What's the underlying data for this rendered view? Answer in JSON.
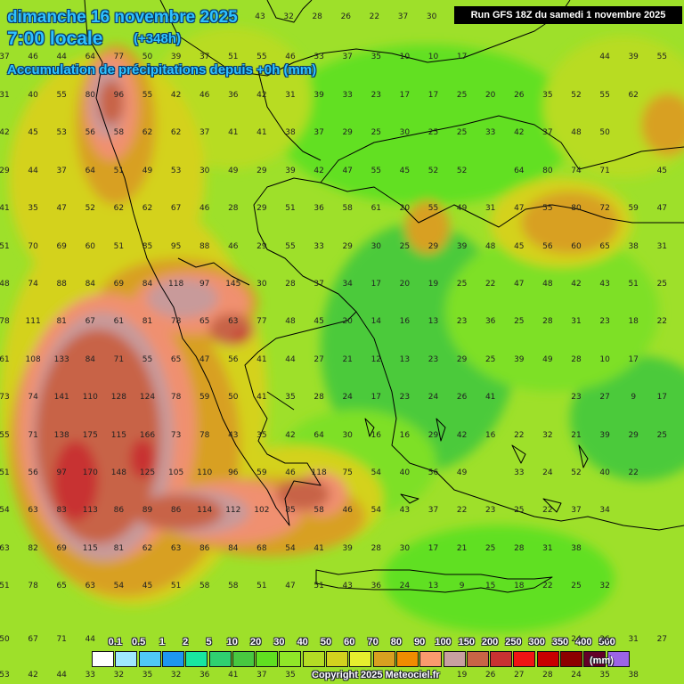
{
  "title": {
    "date_line": "dimanche 16 novembre 2025",
    "time_line": "7:00 locale",
    "lead_line": "(+348h)",
    "field_line": "Accumulation de précipitations depuis +0h (mm)"
  },
  "run_info": "Run GFS 18Z du samedi 1 novembre 2025",
  "copyright": "Copyright 2025 Meteociel.fr",
  "legend": {
    "unit": "(mm)",
    "labels": [
      "0.1",
      "0.5",
      "1",
      "2",
      "5",
      "10",
      "20",
      "30",
      "40",
      "50",
      "60",
      "70",
      "80",
      "90",
      "100",
      "150",
      "200",
      "250",
      "300",
      "350",
      "400",
      "500"
    ],
    "colors": [
      "#ffffff",
      "#a0e8ff",
      "#50c8f5",
      "#1e96f0",
      "#18e6a0",
      "#2fd070",
      "#48c840",
      "#60e020",
      "#90e628",
      "#b4dc24",
      "#d2d21e",
      "#e6ee2e",
      "#d8a020",
      "#f08c00",
      "#fa9a6e",
      "#c8a0a0",
      "#c86446",
      "#c83232",
      "#f01414",
      "#c80000",
      "#8c0000",
      "#640028",
      "#9c64e6"
    ]
  },
  "grid_values": [
    [
      43,
      32,
      28,
      26,
      22,
      37,
      30,
      null,
      null,
      null,
      null,
      null,
      null
    ],
    [
      37,
      46,
      44,
      64,
      77,
      50,
      39,
      37,
      51,
      55,
      46,
      33,
      37,
      35,
      10,
      10,
      17,
      null,
      null,
      null,
      null,
      44,
      39,
      55
    ],
    [
      31,
      40,
      55,
      80,
      96,
      55,
      42,
      46,
      36,
      42,
      31,
      39,
      33,
      23,
      17,
      17,
      25,
      20,
      26,
      35,
      52,
      55,
      62
    ],
    [
      42,
      45,
      53,
      56,
      58,
      62,
      62,
      37,
      41,
      41,
      38,
      37,
      29,
      25,
      30,
      25,
      25,
      33,
      42,
      37,
      48,
      50
    ],
    [
      29,
      44,
      37,
      64,
      51,
      49,
      53,
      30,
      49,
      29,
      39,
      42,
      47,
      55,
      45,
      52,
      52,
      null,
      64,
      80,
      74,
      71,
      null,
      45
    ],
    [
      41,
      35,
      47,
      52,
      62,
      62,
      67,
      46,
      28,
      29,
      51,
      36,
      58,
      61,
      20,
      55,
      49,
      31,
      47,
      55,
      80,
      72,
      59,
      47
    ],
    [
      51,
      70,
      69,
      60,
      51,
      85,
      95,
      88,
      46,
      29,
      55,
      33,
      29,
      30,
      25,
      29,
      39,
      48,
      45,
      56,
      60,
      65,
      38,
      31
    ],
    [
      48,
      74,
      88,
      84,
      69,
      84,
      118,
      97,
      145,
      30,
      28,
      37,
      34,
      17,
      20,
      19,
      25,
      22,
      47,
      48,
      42,
      43,
      51,
      25
    ],
    [
      78,
      111,
      81,
      67,
      61,
      81,
      78,
      65,
      63,
      77,
      48,
      45,
      20,
      14,
      16,
      13,
      23,
      36,
      25,
      28,
      31,
      23,
      18,
      22
    ],
    [
      61,
      108,
      133,
      84,
      71,
      55,
      65,
      47,
      56,
      41,
      44,
      27,
      21,
      12,
      13,
      23,
      29,
      25,
      39,
      49,
      28,
      10,
      17
    ],
    [
      73,
      74,
      141,
      110,
      128,
      124,
      78,
      59,
      50,
      41,
      35,
      28,
      24,
      17,
      23,
      24,
      26,
      41,
      null,
      null,
      23,
      27,
      9,
      17
    ],
    [
      55,
      71,
      138,
      175,
      115,
      166,
      73,
      78,
      43,
      35,
      42,
      64,
      30,
      16,
      16,
      29,
      42,
      16,
      22,
      32,
      21,
      39,
      29,
      25
    ],
    [
      51,
      56,
      97,
      170,
      148,
      125,
      105,
      110,
      96,
      59,
      46,
      118,
      75,
      54,
      40,
      56,
      49,
      null,
      33,
      24,
      52,
      40,
      22
    ],
    [
      54,
      63,
      83,
      113,
      86,
      89,
      86,
      114,
      112,
      102,
      85,
      58,
      46,
      54,
      43,
      37,
      22,
      23,
      25,
      22,
      37,
      34
    ],
    [
      63,
      82,
      69,
      115,
      81,
      62,
      63,
      86,
      84,
      68,
      54,
      41,
      39,
      28,
      30,
      17,
      21,
      25,
      28,
      31,
      38
    ],
    [
      51,
      78,
      65,
      63,
      54,
      45,
      51,
      58,
      58,
      51,
      47,
      51,
      43,
      36,
      24,
      13,
      9,
      15,
      18,
      22,
      25,
      32
    ],
    [
      50,
      67,
      71,
      44,
      null,
      null,
      null,
      null,
      null,
      null,
      null,
      null,
      null,
      null,
      null,
      null,
      null,
      null,
      null,
      null,
      24,
      26,
      31,
      27
    ],
    [
      53,
      42,
      44,
      33,
      32,
      35,
      32,
      36,
      41,
      37,
      35,
      null,
      null,
      null,
      null,
      null,
      19,
      26,
      27,
      28,
      24,
      35,
      38
    ]
  ]
}
